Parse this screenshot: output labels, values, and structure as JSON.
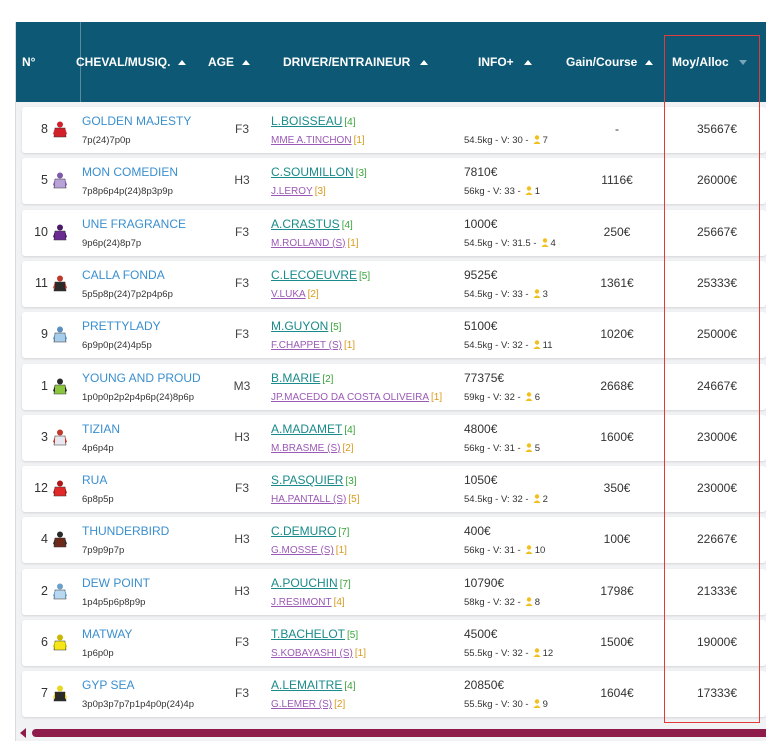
{
  "headers": {
    "num": "N°",
    "cheval": "CHEVAL/MUSIQ.",
    "age": "AGE",
    "driver": "DRIVER/ENTRAINEUR",
    "info": "INFO+",
    "gain": "Gain/Course",
    "moy": "Moy/Alloc"
  },
  "rows": [
    {
      "num": "8",
      "name": "GOLDEN MAJESTY",
      "music": "7p(24)7p0p",
      "age": "F3",
      "driver": "L.BOISSEAU",
      "driver_rank": "[4]",
      "trainer": "MME A.TINCHON",
      "trainer_rank": "[1]",
      "info1": "",
      "info2": "54.5kg - V: 30 -",
      "info_count": "7",
      "gain": "-",
      "moy": "35667€",
      "colors": [
        "#d0202a",
        "#d0202a"
      ]
    },
    {
      "num": "5",
      "name": "MON COMEDIEN",
      "music": "7p8p6p4p(24)8p3p9p",
      "age": "H3",
      "driver": "C.SOUMILLON",
      "driver_rank": "[3]",
      "trainer": "J.LEROY",
      "trainer_rank": "[3]",
      "info1": "7810€",
      "info2": "56kg - V: 33 -",
      "info_count": "1",
      "gain": "1116€",
      "moy": "26000€",
      "colors": [
        "#b9a3d6",
        "#7e5aa8"
      ]
    },
    {
      "num": "10",
      "name": "UNE FRAGRANCE",
      "music": "9p6p(24)8p7p",
      "age": "F3",
      "driver": "A.CRASTUS",
      "driver_rank": "[4]",
      "trainer": "M.ROLLAND (S)",
      "trainer_rank": "[1]",
      "info1": "1000€",
      "info2": "54.5kg - V: 31.5 -",
      "info_count": "4",
      "gain": "250€",
      "moy": "25667€",
      "colors": [
        "#6b2c91",
        "#4a1a6b"
      ]
    },
    {
      "num": "11",
      "name": "CALLA FONDA",
      "music": "5p5p8p(24)7p2p4p6p",
      "age": "F3",
      "driver": "C.LECOEUVRE",
      "driver_rank": "[5]",
      "trainer": "V.LUKA",
      "trainer_rank": "[2]",
      "info1": "9525€",
      "info2": "54.5kg - V: 33 -",
      "info_count": "3",
      "gain": "1361€",
      "moy": "25333€",
      "colors": [
        "#2a2a2a",
        "#c0392b"
      ]
    },
    {
      "num": "9",
      "name": "PRETTYLADY",
      "music": "6p9p0p(24)4p5p",
      "age": "F3",
      "driver": "M.GUYON",
      "driver_rank": "[5]",
      "trainer": "F.CHAPPET (S)",
      "trainer_rank": "[1]",
      "info1": "5100€",
      "info2": "54.5kg - V: 32 -",
      "info_count": "11",
      "gain": "1020€",
      "moy": "25000€",
      "colors": [
        "#a8cdea",
        "#5a8fc0"
      ]
    },
    {
      "num": "1",
      "name": "YOUNG AND PROUD",
      "music": "1p0p0p2p2p4p6p(24)8p6p",
      "age": "M3",
      "driver": "B.MARIE",
      "driver_rank": "[2]",
      "trainer": "JP.MACEDO DA COSTA OLIVEIRA",
      "trainer_rank": "[1]",
      "info1": "77375€",
      "info2": "59kg - V: 32 -",
      "info_count": "6",
      "gain": "2668€",
      "moy": "24667€",
      "colors": [
        "#8cc63f",
        "#2a2a2a"
      ]
    },
    {
      "num": "3",
      "name": "TIZIAN",
      "music": "4p6p4p",
      "age": "H3",
      "driver": "A.MADAMET",
      "driver_rank": "[4]",
      "trainer": "M.BRASME (S)",
      "trainer_rank": "[2]",
      "info1": "4800€",
      "info2": "56kg - V: 31 -",
      "info_count": "5",
      "gain": "1600€",
      "moy": "23000€",
      "colors": [
        "#e8e8f0",
        "#c0392b"
      ]
    },
    {
      "num": "12",
      "name": "RUA",
      "music": "6p8p5p",
      "age": "F3",
      "driver": "S.PASQUIER",
      "driver_rank": "[3]",
      "trainer": "HA.PANTALL (S)",
      "trainer_rank": "[5]",
      "info1": "1050€",
      "info2": "54.5kg - V: 32 -",
      "info_count": "2",
      "gain": "350€",
      "moy": "23000€",
      "colors": [
        "#e02a2a",
        "#b01818"
      ]
    },
    {
      "num": "4",
      "name": "THUNDERBIRD",
      "music": "7p9p9p7p",
      "age": "H3",
      "driver": "C.DEMURO",
      "driver_rank": "[7]",
      "trainer": "G.MOSSE (S)",
      "trainer_rank": "[1]",
      "info1": "400€",
      "info2": "56kg - V: 31 -",
      "info_count": "10",
      "gain": "100€",
      "moy": "22667€",
      "colors": [
        "#6b2a1a",
        "#2a2a2a"
      ]
    },
    {
      "num": "2",
      "name": "DEW POINT",
      "music": "1p4p5p6p8p9p",
      "age": "H3",
      "driver": "A.POUCHIN",
      "driver_rank": "[7]",
      "trainer": "J.RESIMONT",
      "trainer_rank": "[4]",
      "info1": "10790€",
      "info2": "58kg - V: 32 -",
      "info_count": "8",
      "gain": "1798€",
      "moy": "21333€",
      "colors": [
        "#b8d8f0",
        "#6aa0cc"
      ]
    },
    {
      "num": "6",
      "name": "MATWAY",
      "music": "1p6p0p",
      "age": "F3",
      "driver": "T.BACHELOT",
      "driver_rank": "[5]",
      "trainer": "S.KOBAYASHI (S)",
      "trainer_rank": "[1]",
      "info1": "4500€",
      "info2": "55.5kg - V: 32 -",
      "info_count": "12",
      "gain": "1500€",
      "moy": "19000€",
      "colors": [
        "#f5e61a",
        "#c8b800"
      ]
    },
    {
      "num": "7",
      "name": "GYP SEA",
      "music": "3p0p3p7p7p1p4p0p(24)4p",
      "age": "F3",
      "driver": "A.LEMAITRE",
      "driver_rank": "[4]",
      "trainer": "G.LEMER (S)",
      "trainer_rank": "[2]",
      "info1": "20850€",
      "info2": "55.5kg - V: 30 -",
      "info_count": "9",
      "gain": "1604€",
      "moy": "17333€",
      "colors": [
        "#2a2a2a",
        "#e8d820"
      ]
    }
  ]
}
